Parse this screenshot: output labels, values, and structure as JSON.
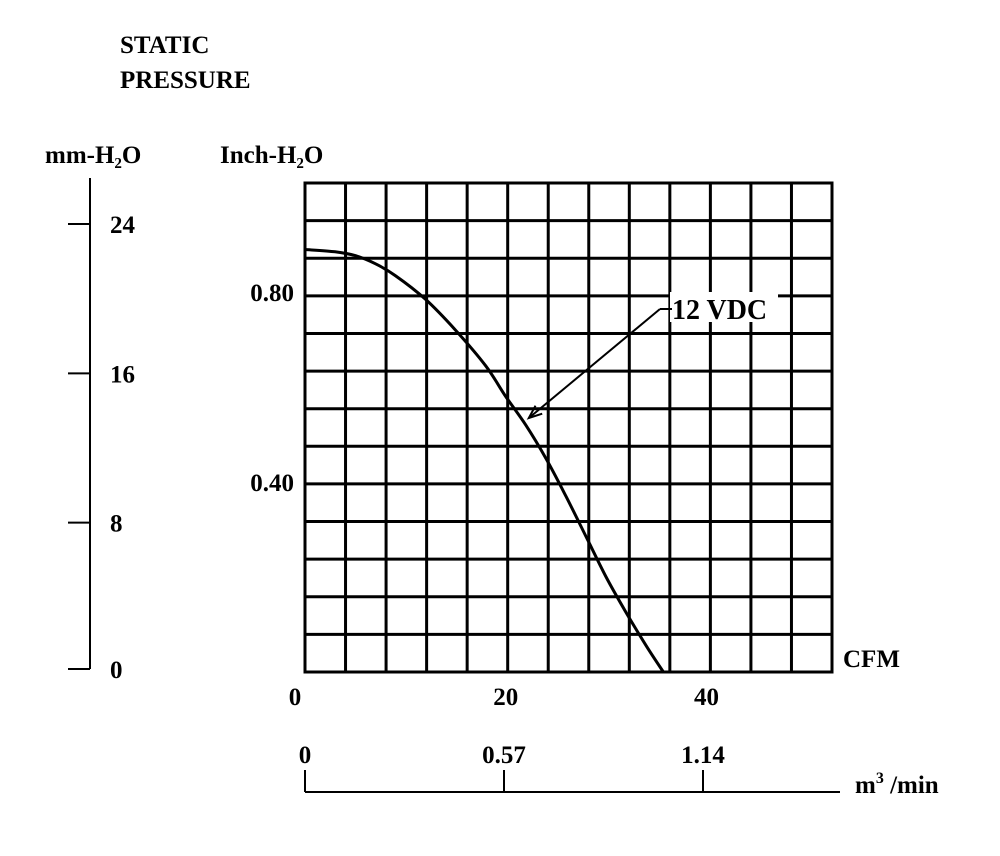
{
  "chart_data": {
    "type": "line",
    "title": "STATIC PRESSURE",
    "title_lines": [
      "STATIC",
      "PRESSURE"
    ],
    "xlabel": "CFM",
    "ylabel_left": "mm-H₂O",
    "ylabel_right": "Inch-H₂O",
    "xlim": [
      0,
      52.5
    ],
    "ylim_inch": [
      0,
      1.03
    ],
    "ylim_mm": [
      0,
      26.2
    ],
    "x_ticks": [
      "0",
      "20",
      "40"
    ],
    "x_tick_values": [
      0,
      20,
      40
    ],
    "inch_ticks": [
      "0.80",
      "0.40"
    ],
    "inch_tick_values": [
      0.8,
      0.4
    ],
    "mm_ticks": [
      "24",
      "16",
      "8",
      "0"
    ],
    "mm_tick_values": [
      24,
      16,
      8,
      0
    ],
    "secondary_x": {
      "label": "m³ /min",
      "label_base": "m",
      "label_sup": "3",
      "label_suffix": " /min",
      "ticks": [
        "0",
        "0.57",
        "1.14"
      ],
      "tick_values_cfm": [
        0,
        20,
        40
      ]
    },
    "grid": true,
    "series": [
      {
        "name": "12 VDC",
        "x": [
          0,
          3,
          5,
          7,
          9,
          12,
          15,
          18,
          20,
          22,
          24,
          26,
          28,
          30,
          32,
          34,
          35.7
        ],
        "y": [
          0.89,
          0.885,
          0.877,
          0.86,
          0.835,
          0.785,
          0.72,
          0.645,
          0.58,
          0.52,
          0.45,
          0.37,
          0.285,
          0.2,
          0.125,
          0.055,
          0.0
        ]
      }
    ],
    "annotation": {
      "text": "12 VDC",
      "points_to": {
        "x": 22.3,
        "y": 0.535
      }
    }
  }
}
